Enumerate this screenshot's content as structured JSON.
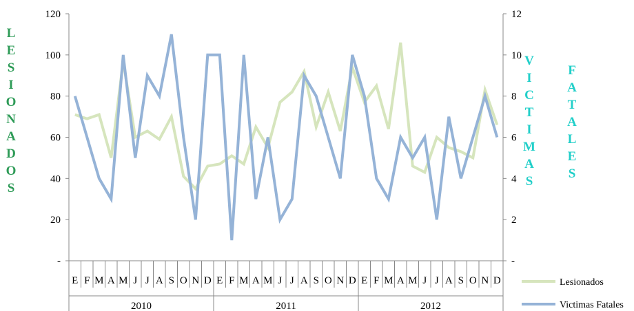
{
  "chart_data": {
    "type": "line",
    "title": "",
    "left_axis_label": "LESIONADOS",
    "right_axis_label_words": [
      "VICTIMAS",
      "FATALES"
    ],
    "left_axis": {
      "ylim": [
        0,
        120
      ],
      "ticks": [
        "-",
        "20",
        "40",
        "60",
        "80",
        "100",
        "120"
      ]
    },
    "right_axis": {
      "ylim": [
        0,
        12
      ],
      "ticks": [
        "-",
        "2",
        "4",
        "6",
        "8",
        "10",
        "12"
      ]
    },
    "months": [
      "E",
      "F",
      "M",
      "A",
      "M",
      "J",
      "J",
      "A",
      "S",
      "O",
      "N",
      "D",
      "E",
      "F",
      "M",
      "A",
      "M",
      "J",
      "J",
      "A",
      "S",
      "O",
      "N",
      "D",
      "E",
      "F",
      "M",
      "A",
      "M",
      "J",
      "J",
      "A",
      "S",
      "O",
      "N",
      "D"
    ],
    "years": [
      "2010",
      "2011",
      "2012"
    ],
    "grid": false,
    "legend_position": "bottom-right",
    "series": [
      {
        "name": "Lesionados",
        "axis": "left",
        "color": "#d6e5bd",
        "values": [
          71,
          69,
          71,
          50,
          97,
          60,
          63,
          59,
          70,
          41,
          35,
          46,
          47,
          51,
          47,
          65,
          55,
          77,
          82,
          92,
          65,
          82,
          63,
          94,
          77,
          85,
          64,
          106,
          46,
          43,
          60,
          55,
          53,
          50,
          83,
          66
        ]
      },
      {
        "name": "Victimas Fatales",
        "axis": "right",
        "color": "#95b3d7",
        "values": [
          8,
          6,
          4,
          3,
          10,
          5,
          9,
          8,
          11,
          6,
          2,
          10,
          10,
          1,
          10,
          3,
          6,
          2,
          3,
          9,
          8,
          6,
          4,
          10,
          8,
          4,
          3,
          6,
          5,
          6,
          2,
          7,
          4,
          6,
          8,
          6
        ]
      }
    ]
  }
}
